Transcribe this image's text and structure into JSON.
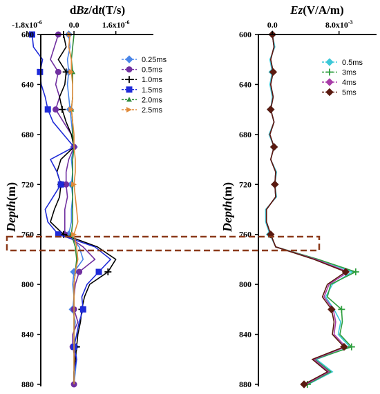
{
  "chart_data": [
    {
      "type": "line",
      "title": "dBz/dt(T/s)",
      "title_parts": [
        "d",
        "Bz",
        "/d",
        "t",
        "(T/s)"
      ],
      "xlabel": "dBz/dt(T/s)",
      "ylabel": "Depth(m)",
      "ylabel_parts": [
        "Depth",
        "(m)"
      ],
      "x_ticks": [
        "-1.8x10",
        "0.0",
        "1.6x10"
      ],
      "x_tick_exp": [
        "-6",
        "",
        "-6"
      ],
      "x_tick_values": [
        -1.8e-06,
        0.0,
        1.6e-06
      ],
      "y_ticks": [
        "600",
        "640",
        "680",
        "720",
        "760",
        "800",
        "840",
        "880"
      ],
      "xlim": [
        -2.3e-06,
        3.3e-06
      ],
      "ylim": [
        600,
        880
      ],
      "y_inverted": true,
      "depths": [
        600,
        610,
        620,
        630,
        640,
        650,
        660,
        670,
        680,
        690,
        700,
        710,
        720,
        730,
        740,
        750,
        760,
        770,
        780,
        790,
        800,
        810,
        820,
        830,
        840,
        850,
        860,
        870,
        880
      ],
      "series": [
        {
          "name": "0.25ms",
          "color": "#4A86E8",
          "marker": "diamond",
          "markers": [
            600,
            630,
            660,
            690,
            720,
            760,
            790,
            820,
            850
          ],
          "values": [
            -2e-07,
            -1.5e-07,
            -2.5e-07,
            -2e-07,
            -2.5e-07,
            -2e-07,
            -1.5e-07,
            -1e-07,
            -5e-08,
            0.0,
            -1e-07,
            -5e-08,
            -1e-07,
            -5e-08,
            -1e-07,
            -1e-07,
            -2e-07,
            2e-07,
            3.5e-07,
            0.0,
            -5e-08,
            0.0,
            -5e-08,
            5e-08,
            0.0,
            5e-08,
            1e-07,
            5e-08,
            0.0
          ]
        },
        {
          "name": "0.5ms",
          "color": "#7030A0",
          "marker": "circle",
          "markers": [
            600,
            630,
            660,
            690,
            720,
            760,
            790,
            820,
            850,
            880
          ],
          "values": [
            -6e-07,
            -7.5e-07,
            -9e-07,
            -6e-07,
            -7e-07,
            -5.5e-07,
            -7e-07,
            -4e-07,
            -1e-07,
            0.0,
            -2e-07,
            -3e-07,
            -3e-07,
            -2.5e-07,
            -3.5e-07,
            -3.5e-07,
            -3.5e-07,
            3.5e-07,
            8e-07,
            2e-07,
            5e-08,
            0.0,
            0.0,
            1.5e-07,
            -5e-08,
            -5e-08,
            5e-08,
            0.0,
            0.0
          ]
        },
        {
          "name": "1.0ms",
          "color": "#000000",
          "marker": "plus",
          "markers": [
            600,
            630,
            660,
            720,
            760,
            790,
            820,
            850
          ],
          "values": [
            -4e-07,
            -3e-07,
            -6e-07,
            -3e-07,
            -3.5e-07,
            -5.5e-07,
            -4.5e-07,
            -3e-07,
            -1e-07,
            0.0,
            -5e-07,
            -6.5e-07,
            -5e-07,
            -5.5e-07,
            -7.5e-07,
            -9e-07,
            -4e-07,
            9e-07,
            1.6e-06,
            1.3e-06,
            6e-07,
            4e-07,
            3e-07,
            2.5e-07,
            1.5e-07,
            1e-07,
            5e-08,
            0.0,
            0.0
          ]
        },
        {
          "name": "1.5ms",
          "color": "#1F2BD8",
          "marker": "square",
          "markers": [
            600,
            630,
            660,
            720,
            760,
            790,
            820,
            850
          ],
          "values": [
            -1.6e-06,
            -1.55e-06,
            -1.2e-06,
            -1.3e-06,
            -1.25e-06,
            -1.1e-06,
            -1e-06,
            -8e-07,
            -4e-07,
            0.0,
            -9e-07,
            -6.5e-07,
            -5e-07,
            -8e-07,
            -1.1e-06,
            -1e-06,
            -6e-07,
            8e-07,
            1.4e-06,
            9.5e-07,
            5e-07,
            3e-07,
            3.5e-07,
            2e-07,
            1e-07,
            0.0,
            1e-07,
            0.0,
            0.0
          ]
        },
        {
          "name": "2.0ms",
          "color": "#2E8B3A",
          "marker": "triangle",
          "markers": [
            630,
            660,
            720,
            760
          ],
          "values": [
            0.0,
            -5e-08,
            -1e-07,
            -5e-08,
            -5e-08,
            -5e-08,
            -1e-07,
            -5e-08,
            -5e-08,
            0.0,
            -5e-08,
            -5e-08,
            -5e-08,
            -5e-08,
            -5e-08,
            -5e-08,
            -1e-07,
            5e-08,
            1e-07,
            5e-08,
            0.0,
            0.0,
            0.0,
            0.0,
            0.0,
            0.0,
            0.0,
            0.0,
            0.0
          ]
        },
        {
          "name": "2.5ms",
          "color": "#E08A3A",
          "marker": "triangle-right",
          "markers": [
            600,
            630,
            660,
            720,
            760
          ],
          "values": [
            -1.5e-07,
            -2e-07,
            -1e-07,
            -1e-07,
            -5e-08,
            -5e-08,
            -1e-07,
            -5e-08,
            0.0,
            0.0,
            5e-08,
            5e-08,
            0.0,
            5e-08,
            1e-07,
            1.5e-07,
            0.0,
            1e-07,
            1.5e-07,
            5e-08,
            0.0,
            0.0,
            0.0,
            0.0,
            0.0,
            0.0,
            0.0,
            0.0,
            0.0
          ]
        }
      ]
    },
    {
      "type": "line",
      "title": "Ez(V/A/m)",
      "title_parts": [
        "Ez",
        "(V/A/m)"
      ],
      "xlabel": "Ez(V/A/m)",
      "ylabel": "Depth(m)",
      "ylabel_parts": [
        "Depth",
        "(m)"
      ],
      "x_ticks": [
        "0.0",
        "8.0x10"
      ],
      "x_tick_exp": [
        "",
        "-3"
      ],
      "x_tick_values": [
        0.0,
        0.008
      ],
      "y_ticks": [
        "600",
        "640",
        "680",
        "720",
        "760",
        "800",
        "840",
        "880"
      ],
      "xlim": [
        -0.003,
        0.0125
      ],
      "ylim": [
        600,
        880
      ],
      "y_inverted": true,
      "depths": [
        600,
        610,
        620,
        630,
        640,
        650,
        660,
        670,
        680,
        690,
        700,
        710,
        720,
        730,
        740,
        750,
        760,
        770,
        780,
        790,
        800,
        810,
        820,
        830,
        840,
        850,
        860,
        870,
        880
      ],
      "series": [
        {
          "name": "0.5ms",
          "color": "#3CC8D8",
          "marker": "diamond",
          "markers": [
            600,
            630,
            660,
            690,
            720,
            760
          ],
          "values": [
            0.0,
            0.0003,
            -0.0003,
            0.0,
            -0.0003,
            0.0,
            -0.0002,
            0.0002,
            -0.0004,
            0.0002,
            -0.0002,
            0.0005,
            0.0003,
            0.0005,
            -0.0008,
            -0.0008,
            -0.0003,
            0.0004,
            0.0055,
            0.0096,
            0.0072,
            0.0064,
            0.0074,
            0.0082,
            0.0079,
            0.0093,
            0.0053,
            0.0072,
            0.0043
          ]
        },
        {
          "name": "3ms",
          "color": "#2E9E3E",
          "marker": "plus",
          "markers": [
            790,
            820,
            850,
            880
          ],
          "values": [
            0.0,
            0.0002,
            -0.0002,
            0.0001,
            -0.0002,
            0.0001,
            -0.0002,
            0.0002,
            -0.0003,
            0.0002,
            -0.0002,
            0.0004,
            0.0003,
            0.0004,
            -0.0007,
            -0.0007,
            -0.0002,
            0.0004,
            0.0055,
            0.01,
            0.007,
            0.0066,
            0.0083,
            0.0084,
            0.0081,
            0.0095,
            0.0051,
            0.007,
            0.0042
          ]
        },
        {
          "name": "4ms",
          "color": "#A83CA8",
          "marker": "diamond",
          "markers": [],
          "values": [
            0.0,
            0.0002,
            -0.0002,
            0.0001,
            -0.0002,
            0.0001,
            -0.0002,
            0.0002,
            -0.0003,
            0.0002,
            -0.0002,
            0.0004,
            0.0003,
            0.0004,
            -0.0007,
            -0.0007,
            -0.0002,
            0.0004,
            0.0052,
            0.0091,
            0.0068,
            0.0062,
            0.0073,
            0.0076,
            0.0074,
            0.0088,
            0.005,
            0.0068,
            0.004
          ]
        },
        {
          "name": "5ms",
          "color": "#5A1A10",
          "marker": "diamond",
          "markers": [
            600,
            630,
            660,
            690,
            720,
            760,
            790,
            820,
            850,
            880
          ],
          "values": [
            0.0,
            0.0002,
            -0.0002,
            0.0001,
            -0.0002,
            0.0001,
            -0.0002,
            0.0002,
            -0.0003,
            0.0002,
            -0.0002,
            0.0004,
            0.0003,
            0.0004,
            -0.0007,
            -0.0007,
            -0.0002,
            0.0004,
            0.005,
            0.0088,
            0.0066,
            0.006,
            0.0071,
            0.0074,
            0.0072,
            0.0086,
            0.0048,
            0.0066,
            0.0038
          ]
        }
      ]
    }
  ],
  "colors": {
    "highlight_band": "#8B3A1A"
  }
}
